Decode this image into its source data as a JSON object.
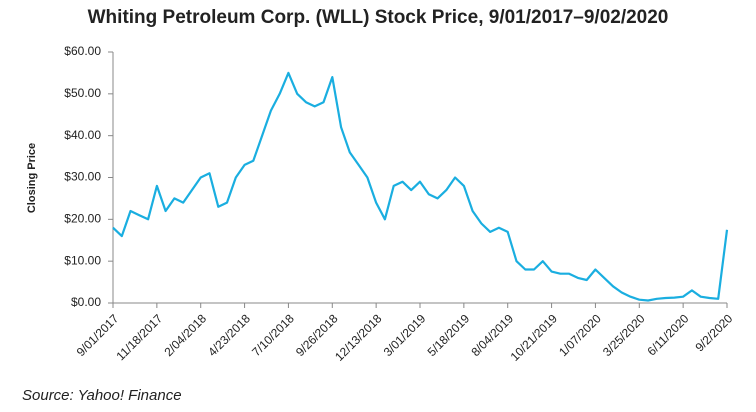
{
  "chart_data": {
    "type": "line",
    "title": "Whiting Petroleum Corp. (WLL) Stock Price, 9/01/2017–9/02/2020",
    "y_label": "Closing Price",
    "source": "Source: Yahoo! Finance",
    "categories": [
      "9/01/2017",
      null,
      null,
      null,
      null,
      "11/18/2017",
      null,
      null,
      null,
      null,
      "2/04/2018",
      null,
      null,
      null,
      null,
      "4/23/2018",
      null,
      null,
      null,
      null,
      "7/10/2018",
      null,
      null,
      null,
      null,
      "9/26/2018",
      null,
      null,
      null,
      null,
      "12/13/2018",
      null,
      null,
      null,
      null,
      "3/01/2019",
      null,
      null,
      null,
      null,
      "5/18/2019",
      null,
      null,
      null,
      null,
      "8/04/2019",
      null,
      null,
      null,
      null,
      "10/21/2019",
      null,
      null,
      null,
      null,
      "1/07/2020",
      null,
      null,
      null,
      null,
      "3/25/2020",
      null,
      null,
      null,
      null,
      "6/11/2020",
      null,
      null,
      null,
      null,
      "9/2/2020"
    ],
    "series": [
      {
        "name": "WLL",
        "color": "#1aaee0",
        "values": [
          18,
          16,
          22,
          21,
          20,
          28,
          22,
          25,
          24,
          27,
          30,
          31,
          23,
          24,
          30,
          33,
          34,
          40,
          46,
          50,
          55,
          50,
          48,
          47,
          48,
          54,
          42,
          36,
          33,
          30,
          24,
          20,
          28,
          29,
          27,
          29,
          26,
          25,
          27,
          30,
          28,
          22,
          19,
          17,
          18,
          17,
          10,
          8,
          8,
          10,
          7.5,
          7,
          7,
          6,
          5.5,
          8,
          6,
          4,
          2.5,
          1.5,
          0.8,
          0.6,
          1.0,
          1.2,
          1.3,
          1.5,
          3,
          1.5,
          1.2,
          1.0,
          17.5
        ]
      }
    ],
    "ylim": [
      0,
      60
    ],
    "yticks": [
      {
        "value": 0,
        "label": "$0.00"
      },
      {
        "value": 10,
        "label": "$10.00"
      },
      {
        "value": 20,
        "label": "$20.00"
      },
      {
        "value": 30,
        "label": "$30.00"
      },
      {
        "value": 40,
        "label": "$40.00"
      },
      {
        "value": 50,
        "label": "$50.00"
      },
      {
        "value": 60,
        "label": "$60.00"
      }
    ],
    "grid": false
  }
}
